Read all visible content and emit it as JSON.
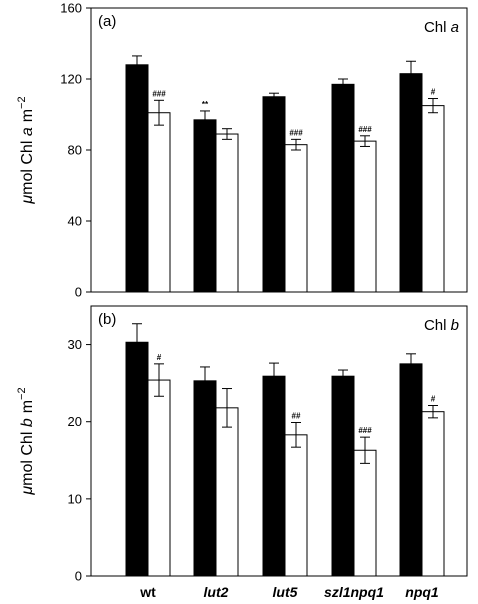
{
  "chart_data": [
    {
      "type": "bar",
      "panel": "(a)",
      "title": "Chl a",
      "title_main": "Chl ",
      "title_italic": "a",
      "ylabel_mu": "μ",
      "ylabel_main": "mol Chl ",
      "ylabel_italic": "a",
      "ylabel_unit": "m",
      "ylabel_exp": "−2",
      "ylim": [
        0,
        160
      ],
      "yticks": [
        "0",
        "40",
        "80",
        "120",
        "160"
      ],
      "categories": [
        "wt",
        "lut2",
        "lut5",
        "szl1npq1",
        "npq1"
      ],
      "series": [
        {
          "color": "#000000",
          "values": [
            128,
            97,
            110,
            117,
            123
          ],
          "errors": [
            5,
            5,
            2,
            3,
            7
          ],
          "sig": [
            "",
            "**",
            "",
            "",
            ""
          ]
        },
        {
          "color": "#ffffff",
          "values": [
            101,
            89,
            83,
            85,
            105
          ],
          "errors": [
            7,
            3,
            3,
            3,
            4
          ],
          "sig": [
            "###",
            "",
            "###",
            "###",
            "#"
          ]
        }
      ]
    },
    {
      "type": "bar",
      "panel": "(b)",
      "title": "Chl b",
      "title_main": "Chl ",
      "title_italic": "b",
      "ylabel_mu": "μ",
      "ylabel_main": "mol Chl ",
      "ylabel_italic": "b",
      "ylabel_unit": "m",
      "ylabel_exp": "−2",
      "ylim": [
        0,
        35
      ],
      "yticks": [
        "0",
        "10",
        "20",
        "30"
      ],
      "categories": [
        "wt",
        "lut2",
        "lut5",
        "szl1npq1",
        "npq1"
      ],
      "series": [
        {
          "color": "#000000",
          "values": [
            30.3,
            25.3,
            25.9,
            25.9,
            27.5
          ],
          "errors": [
            2.4,
            1.8,
            1.7,
            0.8,
            1.3
          ],
          "sig": [
            "",
            "",
            "",
            "",
            ""
          ]
        },
        {
          "color": "#ffffff",
          "values": [
            25.4,
            21.8,
            18.3,
            16.3,
            21.3
          ],
          "errors": [
            2.1,
            2.5,
            1.6,
            1.7,
            0.8
          ],
          "sig": [
            "#",
            "",
            "##",
            "###",
            "#"
          ]
        }
      ]
    }
  ]
}
